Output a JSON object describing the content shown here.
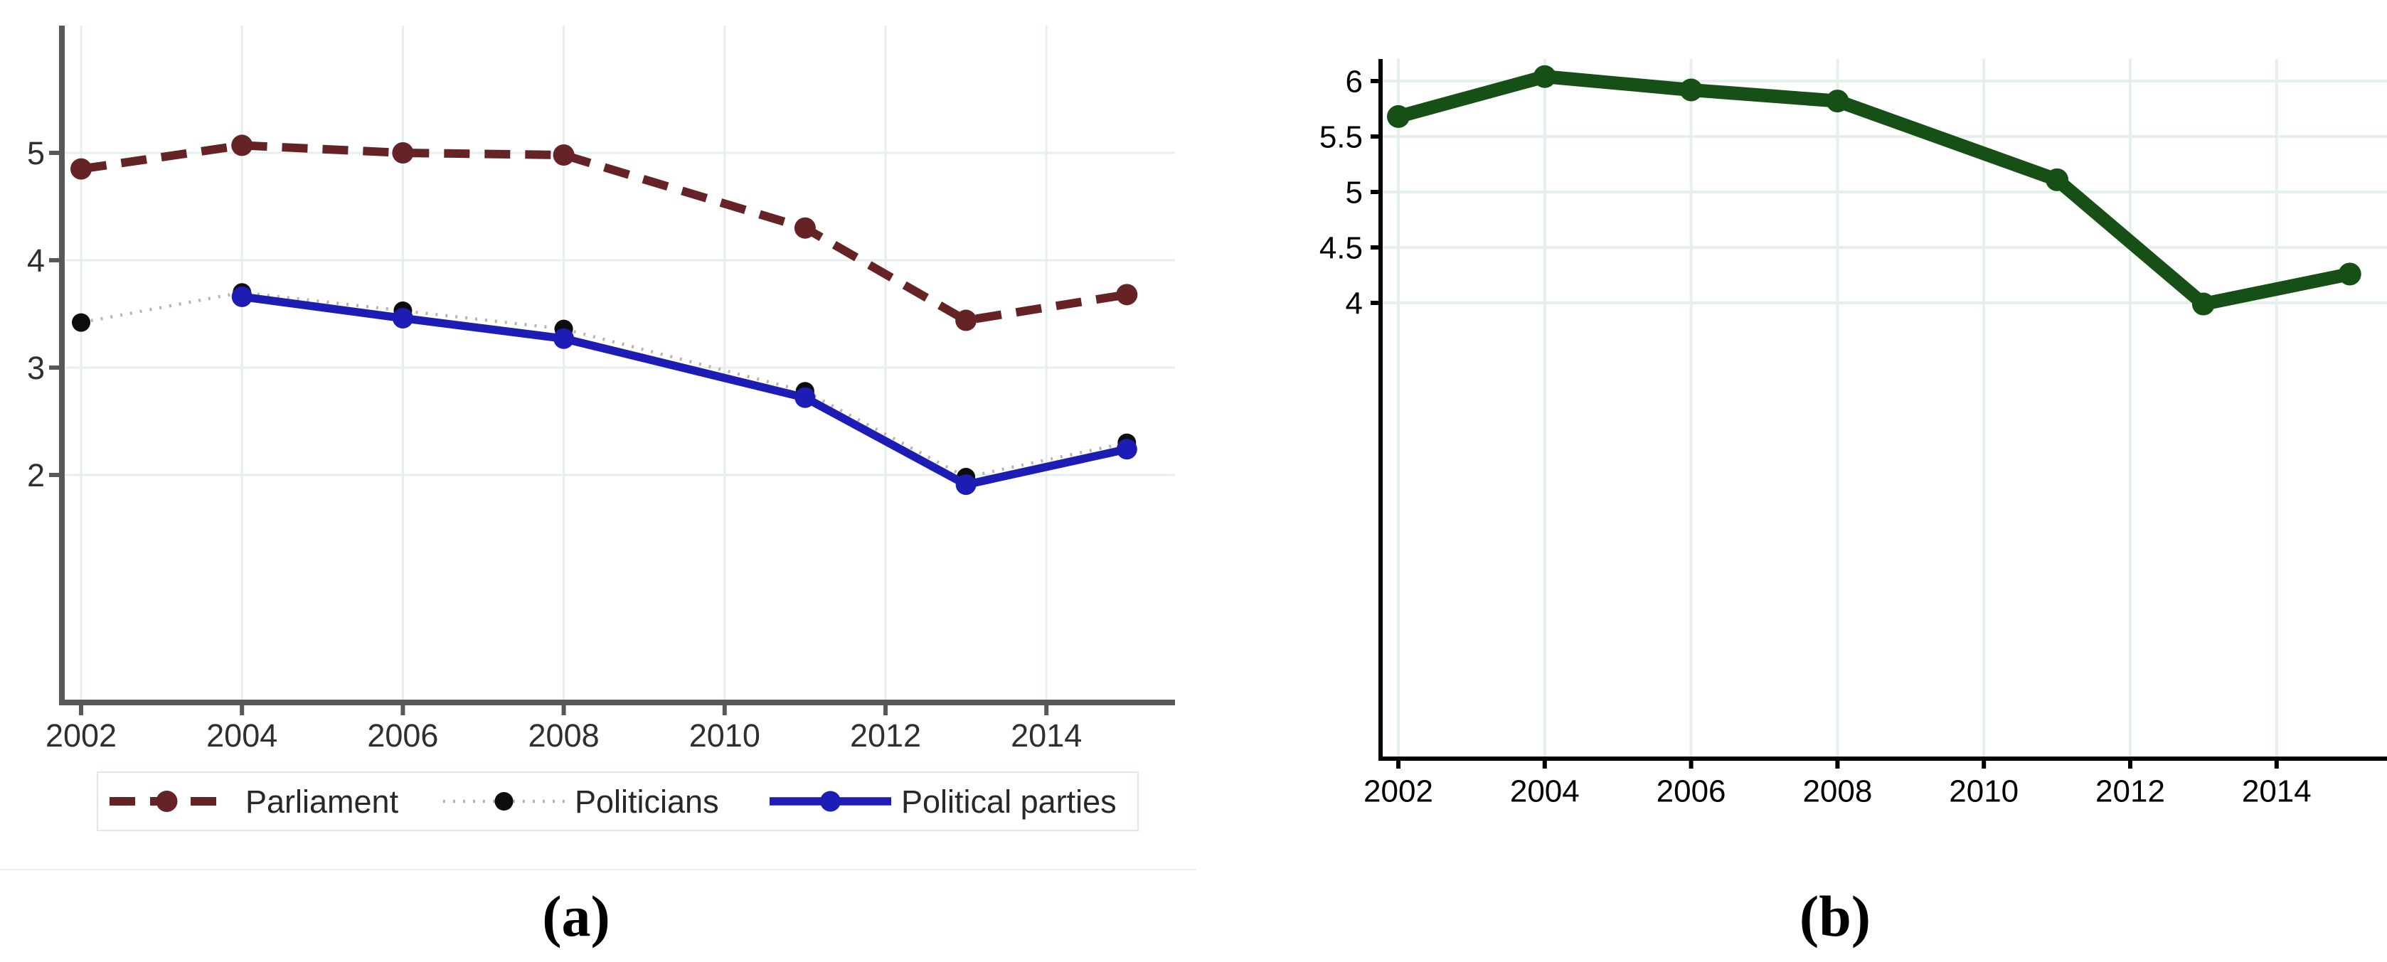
{
  "figure": {
    "captions": {
      "a": "(a)",
      "b": "(b)"
    }
  },
  "chart_data": [
    {
      "id": "a",
      "type": "line",
      "title": "",
      "xlabel": "",
      "ylabel": "",
      "xlim": [
        2001.8,
        2015.6
      ],
      "ylim": [
        0,
        6.2
      ],
      "grid": true,
      "legend_position": "bottom",
      "x_ticks": [
        2002,
        2004,
        2006,
        2008,
        2010,
        2012,
        2014
      ],
      "x_tick_labels": [
        "2002",
        "2004",
        "2006",
        "2008",
        "2010",
        "2012",
        "2014"
      ],
      "y_ticks": [
        2,
        3,
        4,
        5
      ],
      "y_tick_labels": [
        "2",
        "3",
        "4",
        "5"
      ],
      "series": [
        {
          "name": "Parliament",
          "color": "#662326",
          "line_style": "dashed",
          "marker": "circle",
          "points": [
            [
              2002,
              4.85
            ],
            [
              2004,
              5.07
            ],
            [
              2006,
              5.0
            ],
            [
              2008,
              4.98
            ],
            [
              2011,
              4.3
            ],
            [
              2013,
              3.44
            ],
            [
              2015,
              3.68
            ]
          ]
        },
        {
          "name": "Politicians",
          "color": "#b5b5b5",
          "marker_color": "#0d0d0d",
          "line_style": "dotted",
          "marker": "circle",
          "points": [
            [
              2002,
              3.42
            ],
            [
              2004,
              3.7
            ],
            [
              2006,
              3.53
            ],
            [
              2008,
              3.36
            ],
            [
              2011,
              2.78
            ],
            [
              2013,
              1.98
            ],
            [
              2015,
              2.3
            ]
          ]
        },
        {
          "name": "Political parties",
          "color": "#1d1db5",
          "line_style": "solid",
          "marker": "circle",
          "points": [
            [
              2004,
              3.66
            ],
            [
              2006,
              3.46
            ],
            [
              2008,
              3.27
            ],
            [
              2011,
              2.72
            ],
            [
              2013,
              1.91
            ],
            [
              2015,
              2.24
            ]
          ]
        }
      ]
    },
    {
      "id": "b",
      "type": "line",
      "title": "",
      "xlabel": "",
      "ylabel": "",
      "xlim": [
        2001.8,
        2015.6
      ],
      "ylim": [
        0,
        6.2
      ],
      "grid": true,
      "legend_position": "none",
      "x_ticks": [
        2002,
        2004,
        2006,
        2008,
        2010,
        2012,
        2014
      ],
      "x_tick_labels": [
        "2002",
        "2004",
        "2006",
        "2008",
        "2010",
        "2012",
        "2014"
      ],
      "y_ticks": [
        4,
        4.5,
        5,
        5.5,
        6
      ],
      "y_tick_labels": [
        "4",
        "4.5",
        "5",
        "5.5",
        "6"
      ],
      "series": [
        {
          "color": "#165016",
          "line_style": "solid",
          "marker": "circle",
          "points": [
            [
              2002,
              5.68
            ],
            [
              2004,
              6.04
            ],
            [
              2006,
              5.92
            ],
            [
              2008,
              5.82
            ],
            [
              2011,
              5.11
            ],
            [
              2013,
              3.99
            ],
            [
              2015,
              4.26
            ]
          ]
        }
      ]
    }
  ]
}
